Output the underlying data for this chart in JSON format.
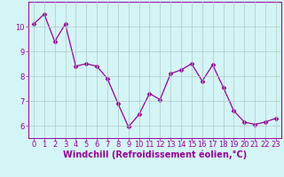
{
  "x": [
    0,
    1,
    2,
    3,
    4,
    5,
    6,
    7,
    8,
    9,
    10,
    11,
    12,
    13,
    14,
    15,
    16,
    17,
    18,
    19,
    20,
    21,
    22,
    23
  ],
  "y": [
    10.1,
    10.5,
    9.4,
    10.1,
    8.4,
    8.5,
    8.4,
    7.9,
    6.9,
    5.95,
    6.45,
    7.3,
    7.05,
    8.1,
    8.25,
    8.5,
    7.8,
    8.45,
    7.55,
    6.6,
    6.15,
    6.05,
    6.15,
    6.3
  ],
  "line_color": "#990099",
  "marker": "D",
  "marker_size": 2.5,
  "bg_color": "#d4f5f5",
  "grid_color": "#b0c8c8",
  "xlabel": "Windchill (Refroidissement éolien,°C)",
  "ylim": [
    5.5,
    11.0
  ],
  "xlim": [
    -0.5,
    23.5
  ],
  "yticks": [
    6,
    7,
    8,
    9,
    10
  ],
  "xticks": [
    0,
    1,
    2,
    3,
    4,
    5,
    6,
    7,
    8,
    9,
    10,
    11,
    12,
    13,
    14,
    15,
    16,
    17,
    18,
    19,
    20,
    21,
    22,
    23
  ],
  "tick_color": "#990099",
  "label_color": "#990099",
  "xlabel_fontsize": 7,
  "tick_fontsize": 6
}
